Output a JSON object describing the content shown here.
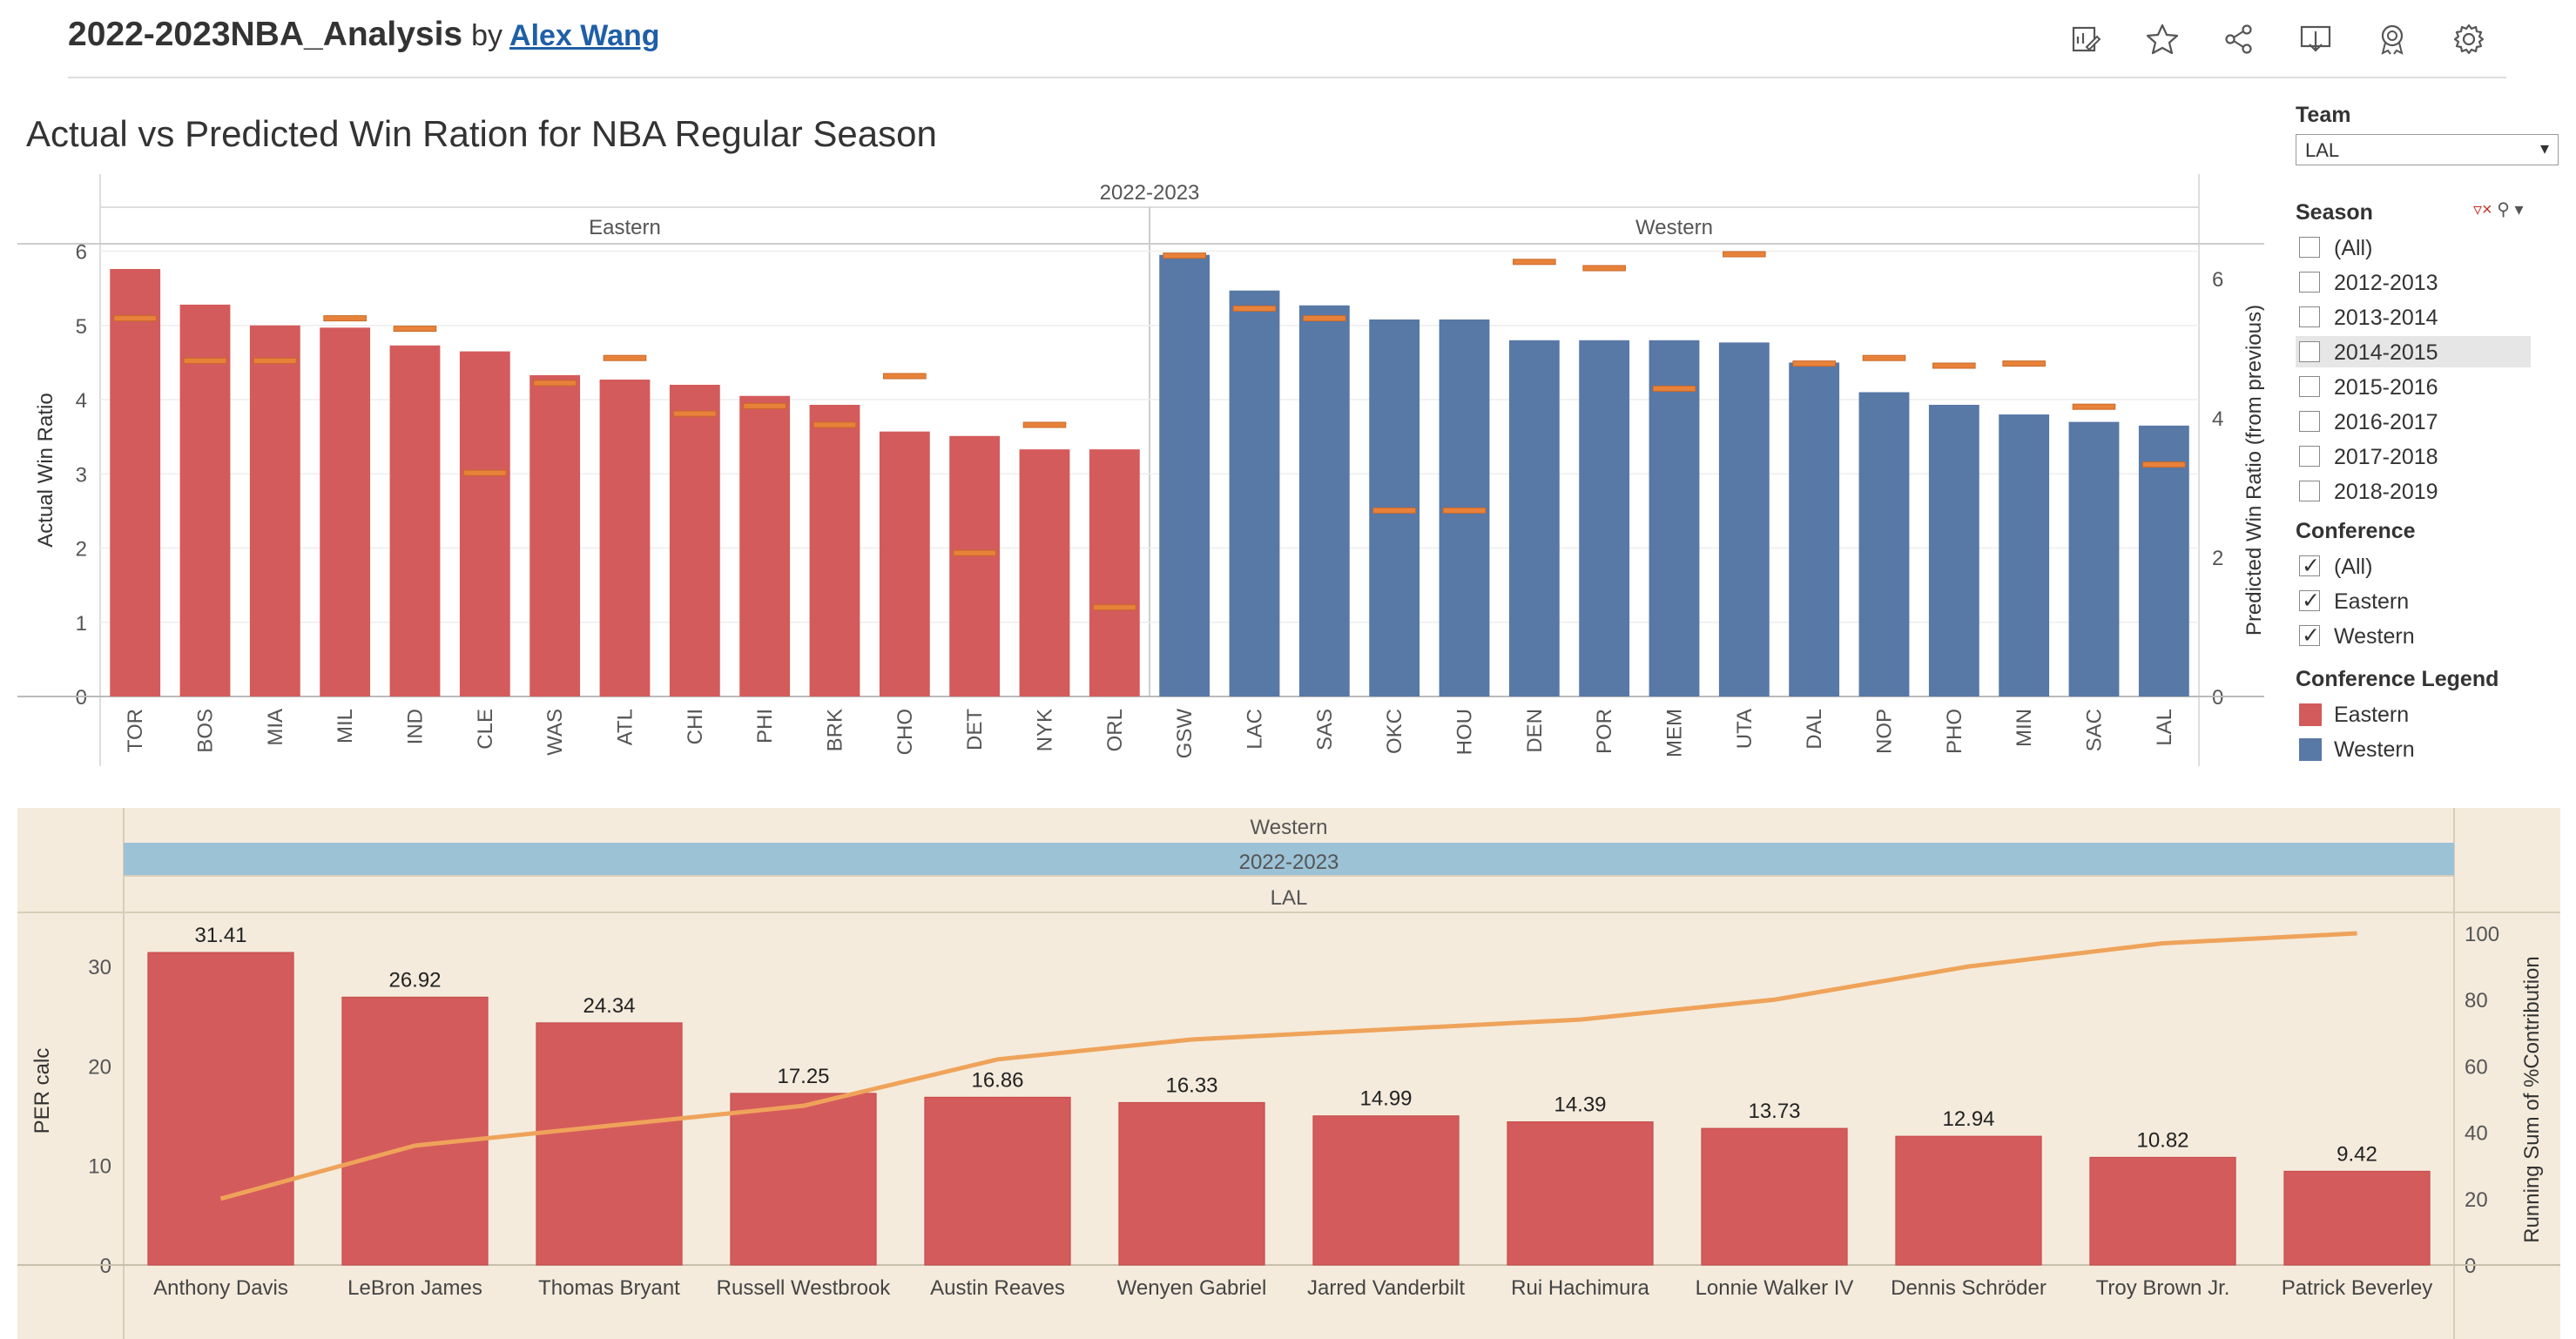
{
  "header": {
    "title": "2022-2023NBA_Analysis",
    "by": "by",
    "author": "Alex Wang",
    "toolbar_icons": [
      "edit-icon",
      "star-icon",
      "share-icon",
      "download-icon",
      "badge-icon",
      "gear-icon"
    ]
  },
  "page_title": "Actual vs Predicted Win Ration for NBA Regular Season",
  "filters": {
    "team": {
      "label": "Team",
      "value": "LAL"
    },
    "season": {
      "label": "Season",
      "options": [
        {
          "label": "(All)",
          "checked": false
        },
        {
          "label": "2012-2013",
          "checked": false
        },
        {
          "label": "2013-2014",
          "checked": false
        },
        {
          "label": "2014-2015",
          "checked": false,
          "highlighted": true
        },
        {
          "label": "2015-2016",
          "checked": false
        },
        {
          "label": "2016-2017",
          "checked": false
        },
        {
          "label": "2017-2018",
          "checked": false
        },
        {
          "label": "2018-2019",
          "checked": false
        }
      ]
    },
    "conference": {
      "label": "Conference",
      "options": [
        {
          "label": "(All)",
          "checked": true
        },
        {
          "label": "Eastern",
          "checked": true
        },
        {
          "label": "Western",
          "checked": true
        }
      ]
    },
    "legend": {
      "label": "Conference Legend",
      "items": [
        {
          "label": "Eastern",
          "color": "#d45b5b"
        },
        {
          "label": "Western",
          "color": "#5878a6"
        }
      ]
    }
  },
  "colors": {
    "eastern": "#d45b5b",
    "western": "#5878a6",
    "predicted_marker": "#e8823a",
    "running_sum_line": "#efa35a",
    "panel_bg": "#f4ebdc",
    "header_band": "#9cc2d6"
  },
  "chart_data": [
    {
      "type": "bar",
      "season_header": "2022-2023",
      "panels": [
        "Eastern",
        "Western"
      ],
      "ylabel": "Actual Win Ratio",
      "y2label": "Predicted Win Ratio (from previous)",
      "ylim": [
        0,
        6.1
      ],
      "y_ticks": [
        0,
        1,
        2,
        3,
        4,
        5,
        6
      ],
      "y2lim": [
        0,
        6.5
      ],
      "y2_ticks": [
        0,
        2,
        4,
        6
      ],
      "series": [
        {
          "name": "Eastern",
          "categories": [
            "TOR",
            "BOS",
            "MIA",
            "MIL",
            "IND",
            "CLE",
            "WAS",
            "ATL",
            "CHI",
            "PHI",
            "BRK",
            "CHO",
            "DET",
            "NYK",
            "ORL"
          ],
          "actual": [
            5.76,
            5.28,
            5.0,
            4.97,
            4.73,
            4.65,
            4.33,
            4.27,
            4.2,
            4.05,
            3.93,
            3.57,
            3.51,
            3.33,
            3.33
          ],
          "predicted": [
            5.43,
            4.82,
            4.82,
            5.43,
            5.28,
            3.21,
            4.5,
            4.86,
            4.06,
            4.17,
            3.9,
            4.6,
            2.06,
            3.9,
            1.28
          ]
        },
        {
          "name": "Western",
          "categories": [
            "GSW",
            "LAC",
            "SAS",
            "OKC",
            "HOU",
            "DEN",
            "POR",
            "MEM",
            "UTA",
            "DAL",
            "NOP",
            "PHO",
            "MIN",
            "SAC",
            "LAL"
          ],
          "actual": [
            5.95,
            5.47,
            5.27,
            5.08,
            5.08,
            4.8,
            4.8,
            4.8,
            4.77,
            4.5,
            4.1,
            3.93,
            3.8,
            3.7,
            3.65
          ],
          "predicted": [
            6.33,
            5.57,
            5.43,
            2.67,
            2.67,
            6.24,
            6.15,
            4.42,
            6.35,
            4.78,
            4.86,
            4.75,
            4.78,
            4.16,
            3.33
          ]
        }
      ]
    },
    {
      "type": "bar",
      "header_rows": [
        "Western",
        "2022-2023",
        "LAL"
      ],
      "ylabel": "PER calc",
      "y2label": "Running Sum of %Contribution",
      "ylim": [
        0,
        35
      ],
      "y_ticks": [
        0,
        10,
        20,
        30
      ],
      "y2lim": [
        0,
        105
      ],
      "y2_ticks": [
        0,
        20,
        40,
        60,
        80,
        100
      ],
      "categories": [
        "Anthony Davis",
        "LeBron James",
        "Thomas Bryant",
        "Russell Westbrook",
        "Austin Reaves",
        "Wenyen Gabriel",
        "Jarred Vanderbilt",
        "Rui Hachimura",
        "Lonnie Walker IV",
        "Dennis Schröder",
        "Troy Brown Jr.",
        "Patrick Beverley"
      ],
      "values": [
        31.41,
        26.92,
        24.34,
        17.25,
        16.86,
        16.33,
        14.99,
        14.39,
        13.73,
        12.94,
        10.82,
        9.42
      ],
      "value_labels": [
        "31.41",
        "26.92",
        "24.34",
        "17.25",
        "16.86",
        "16.33",
        "14.99",
        "14.39",
        "13.73",
        "12.94",
        "10.82",
        "9.42"
      ],
      "running_sum": [
        20,
        36,
        42,
        48,
        62,
        68,
        71,
        74,
        80,
        90,
        97,
        100
      ]
    }
  ]
}
